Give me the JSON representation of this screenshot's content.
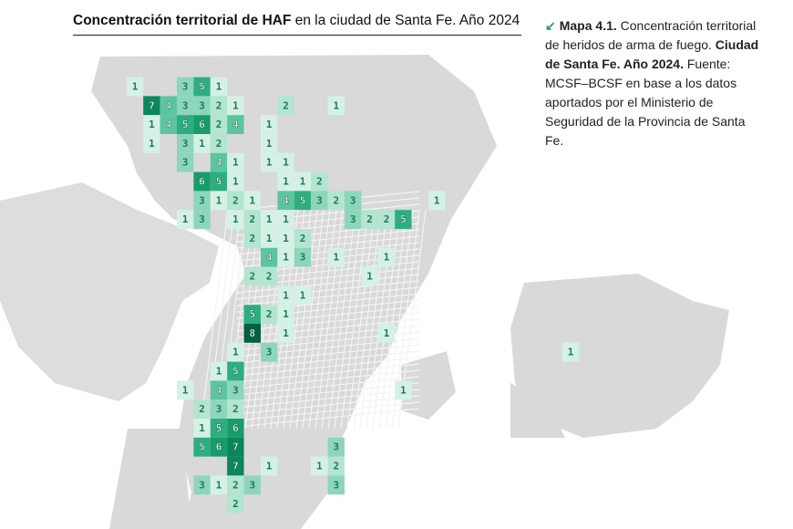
{
  "title": {
    "bold": "Concentración territorial de HAF",
    "rest": " en la ciudad de Santa Fe. Año 2024"
  },
  "caption": {
    "arrow_icon": "arrow-down-left-icon",
    "label": "Mapa 4.1.",
    "text1": " Concentración territorial de heridos de arma de fuego. ",
    "bold2": "Ciudad de Santa Fe. Año 2024.",
    "text2": " Fuente: MCSF–BCSF en base a los datos aportados por el Ministerio de Seguridad de la Provincia de Santa Fe."
  },
  "colors": {
    "1": "#d5f1e6",
    "2": "#b3e5d1",
    "3": "#8dd6bb",
    "4": "#5cc59f",
    "5": "#2eae80",
    "6": "#179c6c",
    "7": "#0c865b",
    "8": "#05603f",
    "land": "#d9d9d9",
    "street": "#f2f2f2"
  },
  "cells": [
    1,
    3,
    5,
    1,
    7,
    4,
    3,
    3,
    2,
    1,
    2,
    1,
    1,
    4,
    5,
    6,
    2,
    4,
    1,
    1,
    3,
    1,
    2,
    1,
    3,
    4,
    1,
    1,
    1,
    6,
    5,
    1,
    1,
    1,
    2,
    3,
    1,
    2,
    1,
    4,
    5,
    3,
    2,
    3,
    1,
    1,
    3,
    1,
    2,
    1,
    1,
    3,
    2,
    2,
    5,
    2,
    1,
    1,
    2,
    4,
    1,
    3,
    1,
    1,
    2,
    2,
    1,
    1,
    1,
    5,
    2,
    1,
    8,
    1,
    1,
    1,
    3,
    1,
    5,
    1,
    4,
    3,
    1,
    2,
    3,
    2,
    1,
    5,
    6,
    5,
    6,
    7,
    3,
    7,
    1,
    1,
    2,
    3,
    1,
    2,
    3,
    3,
    2,
    1
  ]
}
